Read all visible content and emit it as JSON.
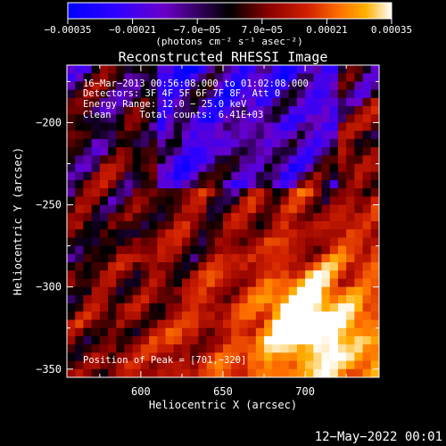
{
  "chart_data": {
    "type": "heatmap",
    "title": "Reconstructed RHESSI Image",
    "xlabel": "Heliocentric X (arcsec)",
    "ylabel": "Heliocentric Y (arcsec)",
    "xlim": [
      555,
      745
    ],
    "ylim": [
      -355,
      -165
    ],
    "x_ticks": [
      600,
      650,
      700
    ],
    "y_ticks": [
      -200,
      -250,
      -300,
      -350
    ],
    "x_tick_labels": [
      "600",
      "650",
      "700"
    ],
    "y_tick_labels": [
      "−200",
      "−250",
      "−300",
      "−350"
    ],
    "colorbar": {
      "min": -0.00035,
      "max": 0.00035,
      "ticks": [
        -0.00035,
        -0.00021,
        -7e-05,
        7e-05,
        0.00021,
        0.00035
      ],
      "tick_labels": [
        "−0.00035",
        "−0.00021",
        "−7.0e−05",
        "7.0e−05",
        "0.00021",
        "0.00035"
      ],
      "unit_label": "(photons cm⁻² s⁻¹ asec⁻²)",
      "colormap": [
        "#0000ff",
        "#3000ff",
        "#6a00c8",
        "#000000",
        "#8a0000",
        "#d02000",
        "#ff7000",
        "#ffb000",
        "#ffffff"
      ]
    },
    "annotations": [
      "16−Mar−2013 00:56:08.000 to 01:02:08.000",
      "Detectors: 3F 4F 5F 6F 7F 8F, Att 0",
      "Energy Range: 12.0 − 25.0 keV",
      "Clean     Total counts: 6.41E+03"
    ],
    "peak_label": "Position of Peak = [701,−320]",
    "peak": [
      701,
      -320
    ],
    "grid": false,
    "legend": "none"
  },
  "footer": {
    "timestamp": "12−May−2022 00:01"
  }
}
